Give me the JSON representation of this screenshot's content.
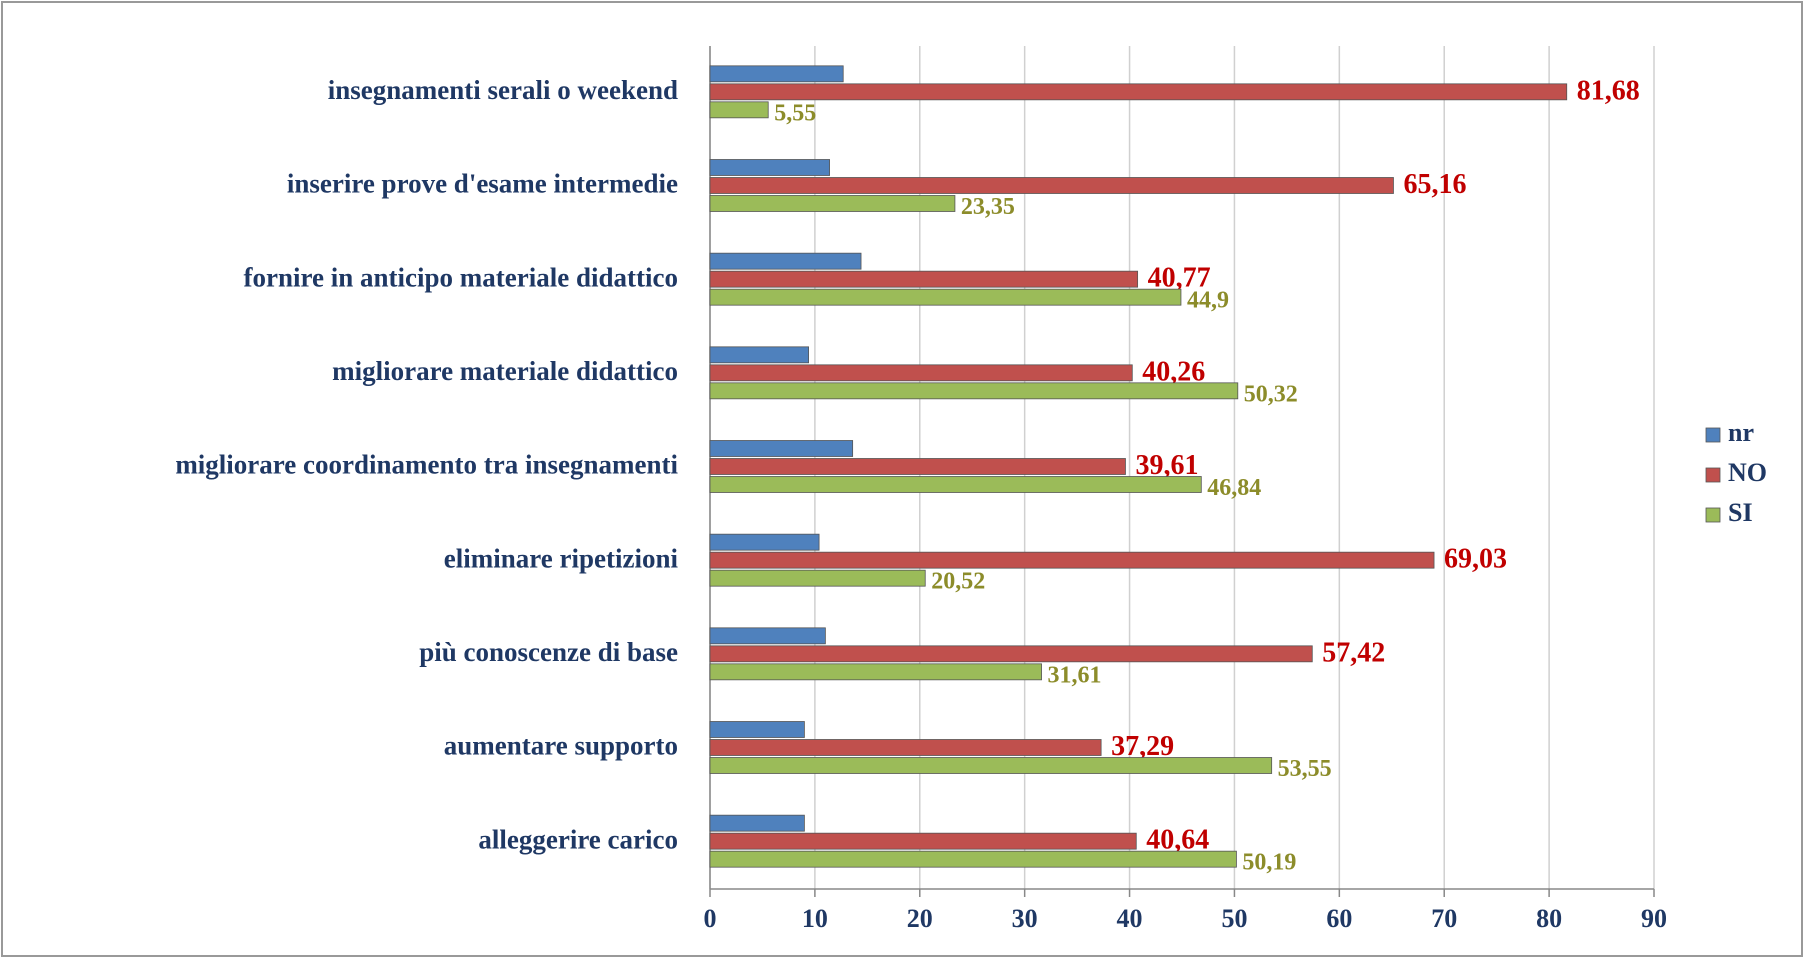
{
  "chart_data": {
    "type": "hbar",
    "categories": [
      "insegnamenti serali o weekend",
      "inserire prove d'esame intermedie",
      "fornire in anticipo materiale didattico",
      "migliorare materiale didattico",
      "migliorare coordinamento tra insegnamenti",
      "eliminare ripetizioni",
      "più conoscenze di base",
      "aumentare supporto",
      "alleggerire carico"
    ],
    "series": [
      {
        "name": "nr",
        "color": "#4f81bd",
        "values": [
          12.7,
          11.4,
          14.4,
          9.4,
          13.6,
          10.4,
          11.0,
          9.0,
          9.0
        ]
      },
      {
        "name": "NO",
        "color": "#c0504d",
        "label_color": "#c00000",
        "values": [
          81.68,
          65.16,
          40.77,
          40.26,
          39.61,
          69.03,
          57.42,
          37.29,
          40.64
        ],
        "value_labels": [
          "81,68",
          "65,16",
          "40,77",
          "40,26",
          "39,61",
          "69,03",
          "57,42",
          "37,29",
          "40,64"
        ]
      },
      {
        "name": "SI",
        "color": "#9bbb59",
        "label_color": "#8c8c2a",
        "values": [
          5.55,
          23.35,
          44.9,
          50.32,
          46.84,
          20.52,
          31.61,
          53.55,
          50.19
        ],
        "value_labels": [
          "5,55",
          "23,35",
          "44,9",
          "50,32",
          "46,84",
          "20,52",
          "31,61",
          "53,55",
          "50,19"
        ]
      }
    ],
    "xlim": [
      0,
      90
    ],
    "xticks": [
      0,
      10,
      20,
      30,
      40,
      50,
      60,
      70,
      80,
      90
    ],
    "grid": true,
    "legend": "right"
  }
}
